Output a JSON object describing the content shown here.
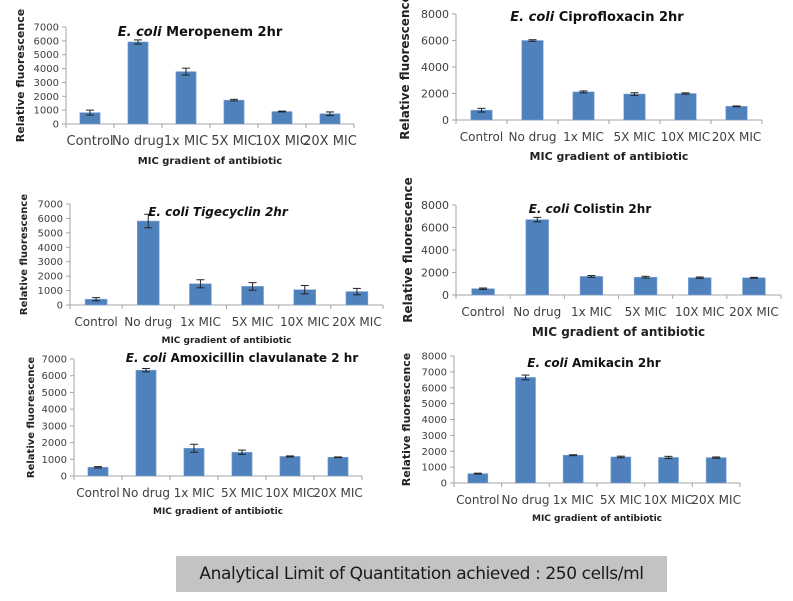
{
  "colors": {
    "bar": "#4f81bd",
    "bar_edge": "#7fa6d6",
    "axis": "#a6a6a6",
    "error": "#222222",
    "banner_bg": "#c3c3c3"
  },
  "footer": {
    "text": "Analytical Limit of Quantitation achieved :  250 cells/ml"
  },
  "chart_data": [
    {
      "id": "meropenem",
      "type": "bar",
      "title_italic": "E. coli",
      "title_rest": " Meropenem 2hr",
      "title_all_italic": false,
      "xlabel": "MIC gradient of antibiotic",
      "ylabel": "Relative fluorescence",
      "categories": [
        "Control",
        "No drug",
        "1x MIC",
        "5X MIC",
        "10X MIC",
        "20X MIC"
      ],
      "values": [
        820,
        5920,
        3780,
        1720,
        900,
        740
      ],
      "errors": [
        180,
        150,
        250,
        60,
        30,
        130
      ],
      "ylim": [
        0,
        7000
      ],
      "yticks": [
        "0",
        "1000",
        "2000",
        "3000",
        "4000",
        "5000",
        "6000",
        "7000"
      ],
      "grid": false
    },
    {
      "id": "ciprofloxacin",
      "type": "bar",
      "title_italic": "E. coli",
      "title_rest": " Ciprofloxacin 2hr",
      "title_all_italic": false,
      "xlabel": "MIC gradient of antibiotic",
      "ylabel": "Relative fluorescence",
      "categories": [
        "Control",
        "No drug",
        "1x MIC",
        "5X MIC",
        "10X MIC",
        "20X MIC"
      ],
      "values": [
        740,
        6000,
        2120,
        1960,
        2000,
        1030
      ],
      "errors": [
        140,
        60,
        70,
        100,
        50,
        30
      ],
      "ylim": [
        0,
        8000
      ],
      "yticks": [
        "0",
        "2000",
        "4000",
        "6000",
        "8000"
      ],
      "grid": false
    },
    {
      "id": "tigecyclin",
      "type": "bar",
      "title_italic": "E. coli Tigecyclin 2hr",
      "title_rest": "",
      "title_all_italic": true,
      "xlabel": "MIC gradient of antibiotic",
      "ylabel": "Relative fluorescence",
      "categories": [
        "Control",
        "No drug",
        "1x MIC",
        "5X MIC",
        "10X MIC",
        "20X MIC"
      ],
      "values": [
        400,
        5820,
        1470,
        1290,
        1060,
        930
      ],
      "errors": [
        110,
        470,
        280,
        260,
        290,
        220
      ],
      "ylim": [
        0,
        7000
      ],
      "yticks": [
        "0",
        "1000",
        "2000",
        "3000",
        "4000",
        "5000",
        "6000",
        "7000"
      ],
      "grid": false
    },
    {
      "id": "colistin",
      "type": "bar",
      "title_italic": "E. coli",
      "title_rest": " Colistin 2hr",
      "title_all_italic": false,
      "xlabel": "MIC gradient of antibiotic",
      "ylabel": "Relative fluorescence",
      "categories": [
        "Control",
        "No drug",
        "1x MIC",
        "5X MIC",
        "10X MIC",
        "20X MIC"
      ],
      "values": [
        560,
        6700,
        1650,
        1580,
        1540,
        1530
      ],
      "errors": [
        60,
        200,
        80,
        80,
        60,
        40
      ],
      "ylim": [
        0,
        8000
      ],
      "yticks": [
        "0",
        "2000",
        "4000",
        "6000",
        "8000"
      ],
      "grid": false
    },
    {
      "id": "amoxicillin-clavulanate",
      "type": "bar",
      "title_italic": "E. coli",
      "title_rest": " Amoxicillin clavulanate 2 hr",
      "title_all_italic": false,
      "xlabel": "MIC gradient of antibiotic",
      "ylabel": "Relative fluorescence",
      "categories": [
        "Control",
        "No drug",
        "1x MIC",
        "5X MIC",
        "10X MIC",
        "20X MIC"
      ],
      "values": [
        520,
        6330,
        1660,
        1420,
        1170,
        1120
      ],
      "errors": [
        40,
        100,
        240,
        130,
        30,
        20
      ],
      "ylim": [
        0,
        7000
      ],
      "yticks": [
        "0",
        "1000",
        "2000",
        "3000",
        "4000",
        "5000",
        "6000",
        "7000"
      ],
      "grid": false
    },
    {
      "id": "amikacin",
      "type": "bar",
      "title_italic": "E. coli",
      "title_rest": " Amikacin 2hr",
      "title_all_italic": false,
      "xlabel": "MIC gradient of antibiotic",
      "ylabel": "Relative fluorescence",
      "categories": [
        "Control",
        "No drug",
        "1x MIC",
        "5X MIC",
        "10X MIC",
        "20X MIC"
      ],
      "values": [
        590,
        6650,
        1750,
        1640,
        1610,
        1600
      ],
      "errors": [
        30,
        150,
        30,
        50,
        70,
        40
      ],
      "ylim": [
        0,
        8000
      ],
      "yticks": [
        "0",
        "1000",
        "2000",
        "3000",
        "4000",
        "5000",
        "6000",
        "7000",
        "8000"
      ],
      "grid": false
    }
  ]
}
